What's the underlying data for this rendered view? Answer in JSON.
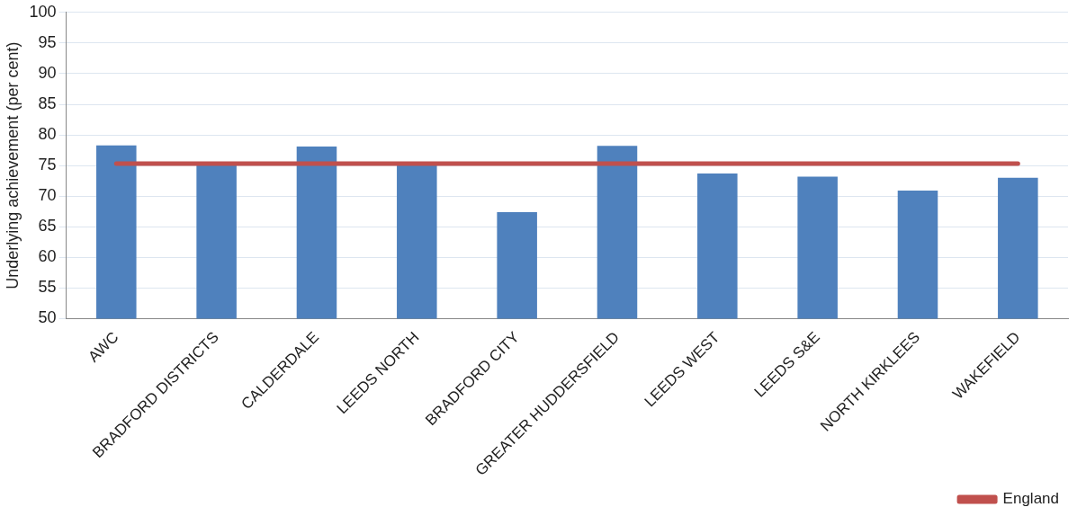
{
  "chart_data": {
    "type": "bar",
    "ylabel": "Underlying achievement (per cent)",
    "categories": [
      "AWC",
      "BRADFORD DISTRICTS",
      "CALDERDALE",
      "LEEDS NORTH",
      "BRADFORD CITY",
      "GREATER HUDDERSFIELD",
      "LEEDS WEST",
      "LEEDS S&E",
      "NORTH KIRKLEES",
      "WAKEFIELD"
    ],
    "series": [
      {
        "color": "#4f81bd",
        "values": [
          78.3,
          75.1,
          78.1,
          75.1,
          67.4,
          78.2,
          73.7,
          73.2,
          70.9,
          73.0
        ]
      },
      {
        "type": "line",
        "name": "England",
        "color": "#c0504d",
        "values": [
          75.3,
          75.3,
          75.3,
          75.3,
          75.3,
          75.3,
          75.3,
          75.3,
          75.3,
          75.3
        ]
      }
    ],
    "ylim": [
      50,
      100
    ],
    "yticks": [
      50,
      55,
      60,
      65,
      70,
      75,
      80,
      85,
      90,
      95,
      100
    ],
    "grid": "y",
    "legend": "bottom right",
    "marker": "none"
  }
}
